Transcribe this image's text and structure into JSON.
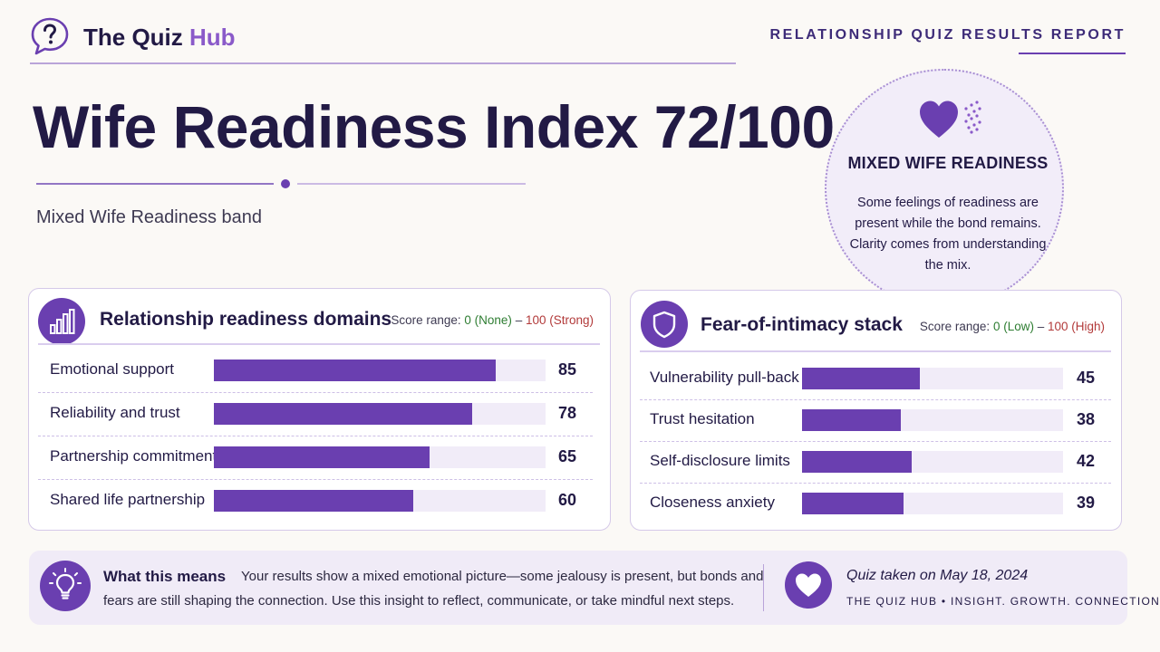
{
  "header": {
    "brand_prefix": "The Quiz ",
    "brand_accent": "Hub",
    "report_label": "RELATIONSHIP QUIZ RESULTS REPORT"
  },
  "title": {
    "main": "Wife Readiness Index 72/100",
    "band": "Mixed Wife Readiness band"
  },
  "summary_circle": {
    "title": "MIXED WIFE READINESS",
    "text": "Some feelings of readiness are present while the bond remains. Clarity comes from understanding the mix."
  },
  "domains": {
    "title": "Relationship readiness domains",
    "range_prefix": "Score range: ",
    "range_low": "0 (None)",
    "range_sep": " – ",
    "range_high": "100 (Strong)",
    "rows": [
      {
        "label": "Emotional support",
        "value": 85
      },
      {
        "label": "Reliability and trust",
        "value": 78
      },
      {
        "label": "Partnership commitment",
        "value": 65
      },
      {
        "label": "Shared life partnership",
        "value": 60
      }
    ]
  },
  "fear_stack": {
    "title": "Fear-of-intimacy stack",
    "range_prefix": "Score range: ",
    "range_low": "0 (Low)",
    "range_sep": " – ",
    "range_high": "100 (High)",
    "rows": [
      {
        "label": "Vulnerability pull-back",
        "value": 45
      },
      {
        "label": "Trust hesitation",
        "value": 38
      },
      {
        "label": "Self-disclosure limits",
        "value": 42
      },
      {
        "label": "Closeness anxiety",
        "value": 39
      }
    ]
  },
  "footer": {
    "means_title": "What this means",
    "means_text_1": "Your results show a mixed emotional picture—some jealousy is present, but bonds and",
    "means_text_2": "fears are still shaping the connection. Use this insight to reflect, communicate, or take mindful next steps.",
    "quiz_date": "Quiz taken on May 18, 2024",
    "tagline": "THE QUIZ HUB • INSIGHT. GROWTH. CONNECTION."
  },
  "colors": {
    "accent": "#6a3fb0",
    "brand_accent": "#8a5ac9",
    "ink": "#221a45",
    "track": "#f1ecf8",
    "range_low": "#2e7d32",
    "range_high": "#b23a3a"
  }
}
